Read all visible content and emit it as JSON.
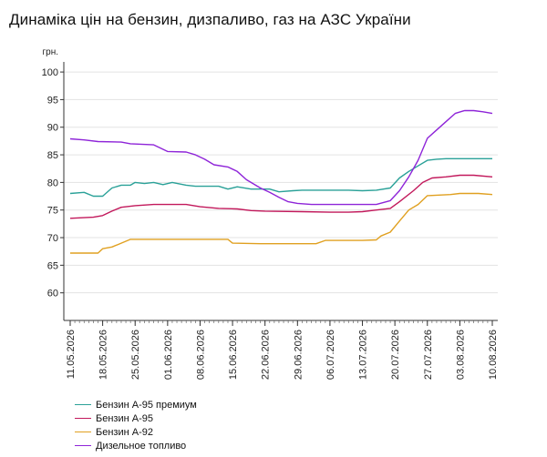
{
  "chart_data": {
    "type": "line",
    "title": "Динаміка цін на бензин, дизпаливо, газ на АЗС України",
    "ylabel": "грн.",
    "xlabel": "",
    "ylim": [
      55,
      101.5
    ],
    "yticks": [
      60,
      65,
      70,
      75,
      80,
      85,
      90,
      95,
      100
    ],
    "x_range": [
      "11.05.2026",
      "10.08.2026"
    ],
    "xticks": [
      "11.05.2026",
      "18.05.2026",
      "25.05.2026",
      "01.06.2026",
      "08.06.2026",
      "15.06.2026",
      "22.06.2026",
      "29.06.2026",
      "06.07.2026",
      "13.07.2026",
      "20.07.2026",
      "27.07.2026",
      "03.08.2026",
      "10.08.2026"
    ],
    "grid": "horizontal",
    "legend_position": "bottom-left",
    "series": [
      {
        "name": "Бензин А-95 премиум",
        "color": "#2aa198",
        "points": [
          [
            "11.05.2026",
            78.0
          ],
          [
            "14.05.2026",
            78.2
          ],
          [
            "16.05.2026",
            77.5
          ],
          [
            "18.05.2026",
            77.5
          ],
          [
            "20.05.2026",
            79.0
          ],
          [
            "22.05.2026",
            79.5
          ],
          [
            "24.05.2026",
            79.5
          ],
          [
            "25.05.2026",
            80.0
          ],
          [
            "27.05.2026",
            79.8
          ],
          [
            "29.05.2026",
            80.0
          ],
          [
            "31.05.2026",
            79.6
          ],
          [
            "02.06.2026",
            80.0
          ],
          [
            "05.06.2026",
            79.5
          ],
          [
            "07.06.2026",
            79.3
          ],
          [
            "12.06.2026",
            79.3
          ],
          [
            "14.06.2026",
            78.8
          ],
          [
            "16.06.2026",
            79.2
          ],
          [
            "19.06.2026",
            78.8
          ],
          [
            "23.06.2026",
            78.8
          ],
          [
            "25.06.2026",
            78.3
          ],
          [
            "28.06.2026",
            78.5
          ],
          [
            "30.06.2026",
            78.6
          ],
          [
            "10.07.2026",
            78.6
          ],
          [
            "13.07.2026",
            78.5
          ],
          [
            "16.07.2026",
            78.6
          ],
          [
            "19.07.2026",
            79.0
          ],
          [
            "21.07.2026",
            80.8
          ],
          [
            "23.07.2026",
            82.0
          ],
          [
            "25.07.2026",
            83.0
          ],
          [
            "27.07.2026",
            84.0
          ],
          [
            "29.07.2026",
            84.2
          ],
          [
            "31.07.2026",
            84.3
          ],
          [
            "10.08.2026",
            84.3
          ]
        ]
      },
      {
        "name": "Бензин А-95",
        "color": "#c2185b",
        "points": [
          [
            "11.05.2026",
            73.5
          ],
          [
            "16.05.2026",
            73.7
          ],
          [
            "18.05.2026",
            74.0
          ],
          [
            "20.05.2026",
            74.8
          ],
          [
            "22.05.2026",
            75.5
          ],
          [
            "25.05.2026",
            75.8
          ],
          [
            "29.05.2026",
            76.0
          ],
          [
            "05.06.2026",
            76.0
          ],
          [
            "08.06.2026",
            75.6
          ],
          [
            "12.06.2026",
            75.3
          ],
          [
            "16.06.2026",
            75.2
          ],
          [
            "19.06.2026",
            74.9
          ],
          [
            "22.06.2026",
            74.8
          ],
          [
            "30.06.2026",
            74.7
          ],
          [
            "06.07.2026",
            74.6
          ],
          [
            "10.07.2026",
            74.6
          ],
          [
            "13.07.2026",
            74.7
          ],
          [
            "16.07.2026",
            75.0
          ],
          [
            "19.07.2026",
            75.3
          ],
          [
            "21.07.2026",
            76.5
          ],
          [
            "24.07.2026",
            78.5
          ],
          [
            "26.07.2026",
            80.0
          ],
          [
            "28.07.2026",
            80.8
          ],
          [
            "31.07.2026",
            81.0
          ],
          [
            "03.08.2026",
            81.3
          ],
          [
            "06.08.2026",
            81.3
          ],
          [
            "10.08.2026",
            81.0
          ]
        ]
      },
      {
        "name": "Бензин А-92",
        "color": "#e0a020",
        "points": [
          [
            "11.05.2026",
            67.2
          ],
          [
            "17.05.2026",
            67.2
          ],
          [
            "18.05.2026",
            68.0
          ],
          [
            "20.05.2026",
            68.3
          ],
          [
            "22.05.2026",
            69.0
          ],
          [
            "24.05.2026",
            69.7
          ],
          [
            "01.06.2026",
            69.7
          ],
          [
            "14.06.2026",
            69.7
          ],
          [
            "15.06.2026",
            69.0
          ],
          [
            "21.06.2026",
            68.9
          ],
          [
            "03.07.2026",
            68.9
          ],
          [
            "05.07.2026",
            69.5
          ],
          [
            "13.07.2026",
            69.5
          ],
          [
            "16.07.2026",
            69.6
          ],
          [
            "17.07.2026",
            70.3
          ],
          [
            "19.07.2026",
            71.0
          ],
          [
            "21.07.2026",
            73.0
          ],
          [
            "23.07.2026",
            75.0
          ],
          [
            "25.07.2026",
            76.0
          ],
          [
            "27.07.2026",
            77.6
          ],
          [
            "01.08.2026",
            77.8
          ],
          [
            "03.08.2026",
            78.0
          ],
          [
            "07.08.2026",
            78.0
          ],
          [
            "10.08.2026",
            77.8
          ]
        ]
      },
      {
        "name": "Дизельное топливо",
        "color": "#8e24d8",
        "points": [
          [
            "11.05.2026",
            87.9
          ],
          [
            "14.05.2026",
            87.7
          ],
          [
            "17.05.2026",
            87.4
          ],
          [
            "22.05.2026",
            87.3
          ],
          [
            "24.05.2026",
            87.0
          ],
          [
            "29.05.2026",
            86.8
          ],
          [
            "31.05.2026",
            86.0
          ],
          [
            "01.06.2026",
            85.6
          ],
          [
            "05.06.2026",
            85.5
          ],
          [
            "07.06.2026",
            85.0
          ],
          [
            "09.06.2026",
            84.2
          ],
          [
            "11.06.2026",
            83.2
          ],
          [
            "14.06.2026",
            82.8
          ],
          [
            "16.06.2026",
            82.0
          ],
          [
            "18.06.2026",
            80.5
          ],
          [
            "21.06.2026",
            79.0
          ],
          [
            "23.06.2026",
            78.2
          ],
          [
            "25.06.2026",
            77.3
          ],
          [
            "27.06.2026",
            76.5
          ],
          [
            "29.06.2026",
            76.2
          ],
          [
            "02.07.2026",
            76.0
          ],
          [
            "16.07.2026",
            76.0
          ],
          [
            "19.07.2026",
            76.7
          ],
          [
            "21.07.2026",
            78.5
          ],
          [
            "23.07.2026",
            81.0
          ],
          [
            "25.07.2026",
            84.0
          ],
          [
            "27.07.2026",
            88.0
          ],
          [
            "29.07.2026",
            89.5
          ],
          [
            "31.07.2026",
            91.0
          ],
          [
            "02.08.2026",
            92.5
          ],
          [
            "04.08.2026",
            93.0
          ],
          [
            "06.08.2026",
            93.0
          ],
          [
            "08.08.2026",
            92.8
          ],
          [
            "10.08.2026",
            92.5
          ]
        ]
      }
    ]
  }
}
